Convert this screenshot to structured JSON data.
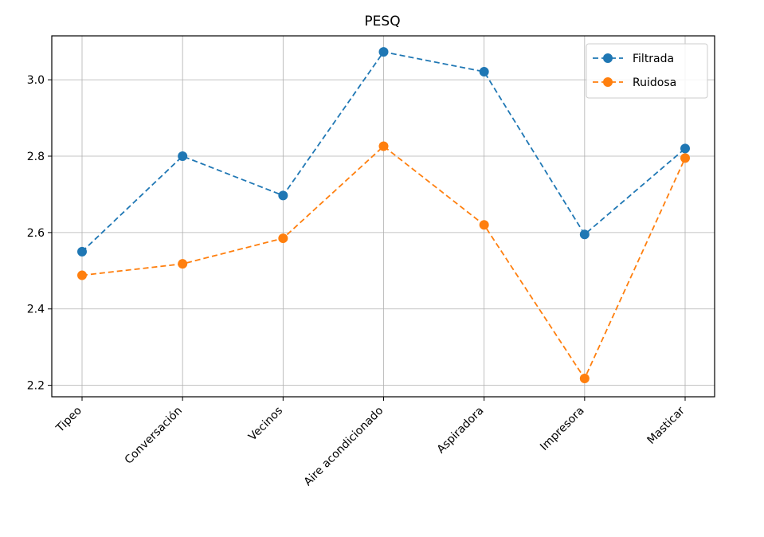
{
  "chart_data": {
    "type": "line",
    "title": "PESQ",
    "xlabel": "",
    "ylabel": "",
    "categories": [
      "Tipeo",
      "Conversación",
      "Vecinos",
      "Aire acondicionado",
      "Aspiradora",
      "Impresora",
      "Masticar"
    ],
    "series": [
      {
        "name": "Filtrada",
        "color": "#1f77b4",
        "style": "dashed",
        "marker": "circle",
        "values": [
          2.55,
          2.8,
          2.697,
          3.073,
          3.021,
          2.595,
          2.82
        ]
      },
      {
        "name": "Ruidosa",
        "color": "#ff7f0e",
        "style": "dashed",
        "marker": "circle",
        "values": [
          2.488,
          2.518,
          2.585,
          2.826,
          2.62,
          2.218,
          2.795
        ]
      }
    ],
    "ylim": [
      2.17,
      3.115
    ],
    "yticks": [
      2.2,
      2.4,
      2.6,
      2.8,
      3.0
    ],
    "ytick_labels": [
      "2.2",
      "2.4",
      "2.6",
      "2.8",
      "3.0"
    ],
    "grid": true,
    "legend_position": "top-right"
  }
}
